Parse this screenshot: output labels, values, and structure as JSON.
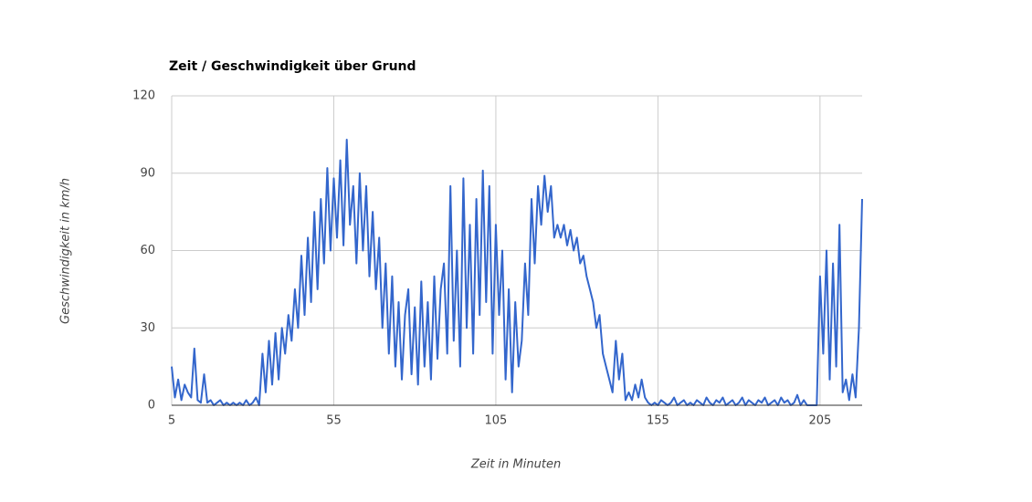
{
  "chart_data": {
    "type": "line",
    "title": "Zeit / Geschwindigkeit über Grund",
    "x_label": "Zeit in Minuten",
    "y_label": "Geschwindigkeit in km/h",
    "x": [
      5,
      6,
      7,
      8,
      9,
      10,
      11,
      12,
      13,
      14,
      15,
      16,
      17,
      18,
      19,
      20,
      21,
      22,
      23,
      24,
      25,
      26,
      27,
      28,
      29,
      30,
      31,
      32,
      33,
      34,
      35,
      36,
      37,
      38,
      39,
      40,
      41,
      42,
      43,
      44,
      45,
      46,
      47,
      48,
      49,
      50,
      51,
      52,
      53,
      54,
      55,
      56,
      57,
      58,
      59,
      60,
      61,
      62,
      63,
      64,
      65,
      66,
      67,
      68,
      69,
      70,
      71,
      72,
      73,
      74,
      75,
      76,
      77,
      78,
      79,
      80,
      81,
      82,
      83,
      84,
      85,
      86,
      87,
      88,
      89,
      90,
      91,
      92,
      93,
      94,
      95,
      96,
      97,
      98,
      99,
      100,
      101,
      102,
      103,
      104,
      105,
      106,
      107,
      108,
      109,
      110,
      111,
      112,
      113,
      114,
      115,
      116,
      117,
      118,
      119,
      120,
      121,
      122,
      123,
      124,
      125,
      126,
      127,
      128,
      129,
      130,
      131,
      132,
      133,
      134,
      135,
      136,
      137,
      138,
      139,
      140,
      141,
      142,
      143,
      144,
      145,
      146,
      147,
      148,
      149,
      150,
      151,
      152,
      153,
      154,
      155,
      156,
      157,
      158,
      159,
      160,
      161,
      162,
      163,
      164,
      165,
      166,
      167,
      168,
      169,
      170,
      171,
      172,
      173,
      174,
      175,
      176,
      177,
      178,
      179,
      180,
      181,
      182,
      183,
      184,
      185,
      186,
      187,
      188,
      189,
      190,
      191,
      192,
      193,
      194,
      195,
      196,
      197,
      198,
      199,
      200,
      201,
      202,
      203,
      204,
      205,
      206,
      207,
      208,
      209,
      210,
      211,
      212,
      213,
      214,
      215,
      216,
      217,
      218
    ],
    "series": [
      {
        "name": "Geschwindigkeit",
        "color": "#3366cc",
        "values": [
          15,
          3,
          10,
          2,
          8,
          5,
          3,
          22,
          2,
          1,
          12,
          1,
          2,
          0,
          1,
          2,
          0,
          1,
          0,
          1,
          0,
          1,
          0,
          2,
          0,
          1,
          3,
          0,
          20,
          5,
          25,
          8,
          28,
          10,
          30,
          20,
          35,
          25,
          45,
          30,
          58,
          35,
          65,
          40,
          75,
          45,
          80,
          55,
          92,
          60,
          88,
          65,
          95,
          62,
          103,
          70,
          85,
          55,
          90,
          60,
          85,
          50,
          75,
          45,
          65,
          30,
          55,
          20,
          50,
          15,
          40,
          10,
          35,
          45,
          12,
          38,
          8,
          48,
          15,
          40,
          10,
          50,
          18,
          45,
          55,
          20,
          85,
          25,
          60,
          15,
          88,
          30,
          70,
          20,
          80,
          35,
          91,
          40,
          85,
          20,
          70,
          35,
          60,
          10,
          45,
          5,
          40,
          15,
          25,
          55,
          35,
          80,
          55,
          85,
          70,
          89,
          75,
          85,
          65,
          70,
          65,
          70,
          62,
          68,
          60,
          65,
          55,
          58,
          50,
          45,
          40,
          30,
          35,
          20,
          15,
          10,
          5,
          25,
          10,
          20,
          2,
          5,
          2,
          8,
          3,
          10,
          3,
          1,
          0,
          1,
          0,
          2,
          1,
          0,
          1,
          3,
          0,
          1,
          2,
          0,
          1,
          0,
          2,
          1,
          0,
          3,
          1,
          0,
          2,
          1,
          3,
          0,
          1,
          2,
          0,
          1,
          3,
          0,
          2,
          1,
          0,
          2,
          1,
          3,
          0,
          1,
          2,
          0,
          3,
          1,
          2,
          0,
          1,
          4,
          0,
          2,
          0,
          0,
          0,
          0,
          50,
          20,
          60,
          10,
          55,
          15,
          70,
          5,
          10,
          2,
          12,
          3,
          30,
          80
        ]
      }
    ],
    "xlim": [
      5,
      218
    ],
    "xticks": [
      5,
      55,
      105,
      155,
      205
    ],
    "ylim": [
      0,
      120
    ],
    "yticks": [
      0,
      30,
      60,
      90,
      120
    ],
    "grid": true
  }
}
